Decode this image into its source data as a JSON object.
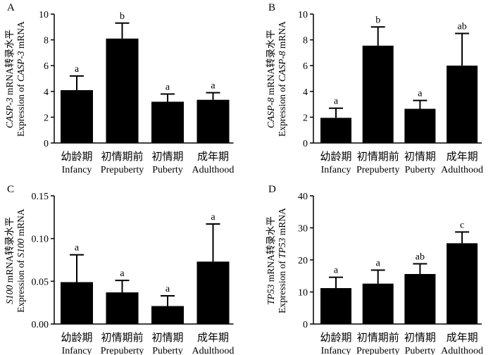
{
  "chart_data": [
    {
      "panel": "A",
      "type": "bar",
      "categories_cn": [
        "幼龄期",
        "初情期前",
        "初情期",
        "成年期"
      ],
      "categories_en": [
        "Infancy",
        "Prepuberty",
        "Puberty",
        "Adulthood"
      ],
      "values": [
        4.1,
        8.1,
        3.2,
        3.35
      ],
      "errors": [
        1.1,
        1.2,
        0.6,
        0.55
      ],
      "sig": [
        "a",
        "b",
        "a",
        "a"
      ],
      "ylim": [
        0,
        10
      ],
      "yticks": [
        "0",
        "2",
        "4",
        "6",
        "8",
        "10"
      ],
      "ylabel_line1": "CASP-3 mRNA转录水平",
      "ylabel_line2": "Expression of CASP-3 mRNA"
    },
    {
      "panel": "B",
      "type": "bar",
      "categories_cn": [
        "幼龄期",
        "初情期前",
        "初情期",
        "成年期"
      ],
      "categories_en": [
        "Infancy",
        "Prepuberty",
        "Puberty",
        "Adulthood"
      ],
      "values": [
        1.95,
        7.55,
        2.65,
        6.0
      ],
      "errors": [
        0.75,
        1.45,
        0.65,
        2.5
      ],
      "sig": [
        "a",
        "b",
        "a",
        "ab"
      ],
      "ylim": [
        0,
        10
      ],
      "yticks": [
        "0",
        "2",
        "4",
        "6",
        "8",
        "10"
      ],
      "ylabel_line1": "CASP-8 mRNA转录水平",
      "ylabel_line2": "Expression of CASP-8 mRNA"
    },
    {
      "panel": "C",
      "type": "bar",
      "categories_cn": [
        "幼龄期",
        "初情期前",
        "初情期",
        "成年期"
      ],
      "categories_en": [
        "Infancy",
        "Prepuberty",
        "Puberty",
        "Adulthood"
      ],
      "values": [
        0.049,
        0.037,
        0.021,
        0.073
      ],
      "errors": [
        0.032,
        0.014,
        0.012,
        0.044
      ],
      "sig": [
        "a",
        "a",
        "a",
        "a"
      ],
      "ylim": [
        0,
        0.15
      ],
      "yticks": [
        "0.00",
        "0.05",
        "0.10",
        "0.15"
      ],
      "ylabel_line1": "S100 mRNA转录水平",
      "ylabel_line2": "Expression of S100 mRNA"
    },
    {
      "panel": "D",
      "type": "bar",
      "categories_cn": [
        "幼龄期",
        "初情期前",
        "初情期",
        "成年期"
      ],
      "categories_en": [
        "Infancy",
        "Prepuberty",
        "Puberty",
        "Adulthood"
      ],
      "values": [
        11.2,
        12.6,
        15.6,
        25.2
      ],
      "errors": [
        3.4,
        4.2,
        3.2,
        3.5
      ],
      "sig": [
        "a",
        "a",
        "ab",
        "c"
      ],
      "ylim": [
        0,
        40
      ],
      "yticks": [
        "0",
        "10",
        "20",
        "30",
        "40"
      ],
      "ylabel_line1": "TP53 mRNA转录水平",
      "ylabel_line2": "Expression of TP53 mRNA"
    }
  ]
}
